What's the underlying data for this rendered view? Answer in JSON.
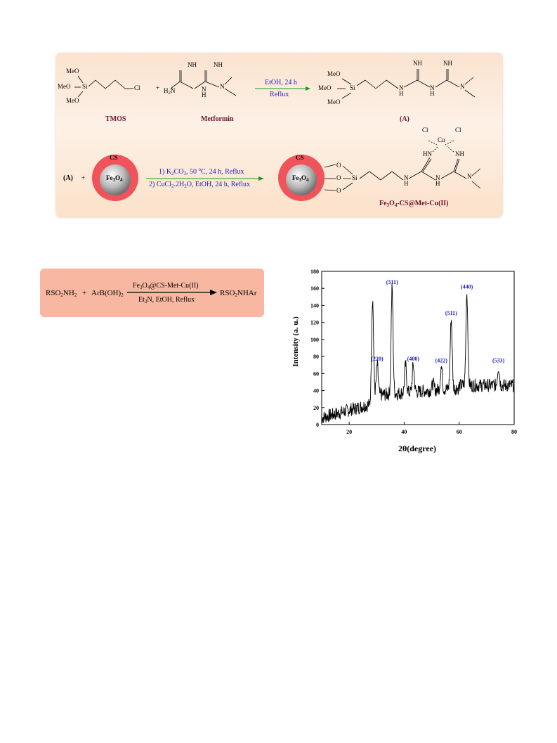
{
  "scheme1": {
    "tmos_label": "TMOS",
    "metformin_label": "Metformin",
    "product_a_label": "(A)",
    "step1_condition_1": "EtOH, 24 h",
    "step1_condition_2": "Reflux",
    "plus": "+",
    "reactant_a": "(A)",
    "cs_label": "CS",
    "core_label_main": "Fe",
    "core_sub1": "3",
    "core_mid": "O",
    "core_sub2": "4",
    "step2_condition_1": "1) K",
    "step2_condition_1_sub": "2",
    "step2_condition_1_rest": "CO",
    "step2_condition_1_sub2": "3",
    "step2_condition_1_tail": ", 50 ",
    "step2_condition_1_sup": "o",
    "step2_condition_1_end": "C, 24 h, Reflux",
    "step2_condition_2": "2) CuCl",
    "step2_condition_2_sub": "2",
    "step2_condition_2_end": ".2H",
    "step2_condition_2_sub2": "2",
    "step2_condition_2_tail": "O, EtOH, 24 h, Reflux",
    "final_product_main": "Fe",
    "final_product_sub1": "3",
    "final_product_mid": "O",
    "final_product_sub2": "4",
    "final_product_tail": "-CS@Met-Cu(II)",
    "atoms": {
      "meo": "MeO",
      "si": "Si",
      "cl": "Cl",
      "nh": "NH",
      "h2n": "H",
      "h2n_sub": "2",
      "h2n_n": "N",
      "n": "N",
      "h": "H",
      "o": "O",
      "cu": "Cu",
      "hn": "HN"
    }
  },
  "scheme2": {
    "reactant1": "RSO",
    "reactant1_sub": "2",
    "reactant1_tail": "NH",
    "reactant1_sub2": "2",
    "plus": "+",
    "reactant2": "ArB(OH)",
    "reactant2_sub": "2",
    "catalyst_main": "Fe",
    "catalyst_sub1": "3",
    "catalyst_mid": "O",
    "catalyst_sub2": "4",
    "catalyst_tail": "@CS-Met-Cu(II)",
    "conditions_main": "Et",
    "conditions_sub": "3",
    "conditions_tail": "N, EtOH, Reflux",
    "product": "RSO",
    "product_sub": "2",
    "product_tail": "NHAr"
  },
  "chart_data": {
    "type": "line",
    "xlabel": "2θ(degree)",
    "ylabel": "Intensity (a. u.)",
    "xlim": [
      10,
      80
    ],
    "ylim": [
      0,
      180
    ],
    "xticks": [
      20,
      40,
      60,
      80
    ],
    "yticks": [
      0,
      20,
      40,
      60,
      80,
      100,
      120,
      140,
      160,
      180
    ],
    "peaks": [
      {
        "x": 28.5,
        "y": 148
      },
      {
        "x": 30.2,
        "y": 70,
        "label": "(220)"
      },
      {
        "x": 35.6,
        "y": 160,
        "label": "(311)"
      },
      {
        "x": 40.5,
        "y": 70
      },
      {
        "x": 43.3,
        "y": 70,
        "label": "(400)"
      },
      {
        "x": 50.5,
        "y": 48
      },
      {
        "x": 53.5,
        "y": 68,
        "label": "(422)"
      },
      {
        "x": 57.1,
        "y": 124,
        "label": "(511)"
      },
      {
        "x": 62.8,
        "y": 155,
        "label": "(440)"
      },
      {
        "x": 74.3,
        "y": 68,
        "label": "(533)"
      }
    ],
    "label_color": "#1d1dbd"
  }
}
